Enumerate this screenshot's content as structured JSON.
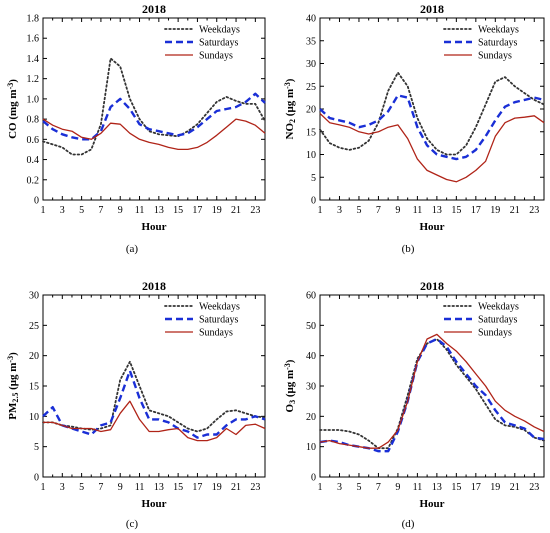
{
  "chart_data": [
    {
      "type": "line",
      "panel_label": "(a)",
      "title": "2018",
      "xlabel": "Hour",
      "ylabel_main": "CO (mg m",
      "ylabel_sup": "-3",
      "ylabel_close": ")",
      "xlim": [
        1,
        24
      ],
      "ylim": [
        0,
        1.8
      ],
      "xticks": [
        "1",
        "3",
        "5",
        "7",
        "9",
        "11",
        "13",
        "15",
        "17",
        "19",
        "21",
        "23"
      ],
      "yticks": [
        "0",
        "0.2",
        "0.4",
        "0.6",
        "0.8",
        "1.0",
        "1.2",
        "1.4",
        "1.6",
        "1.8"
      ],
      "ytick_values": [
        0,
        0.2,
        0.4,
        0.6,
        0.8,
        1.0,
        1.2,
        1.4,
        1.6,
        1.8
      ],
      "legend_position": "top-right",
      "series": [
        {
          "name": "Weekdays",
          "color": "#333333",
          "style": "dotted",
          "values": [
            0.58,
            0.55,
            0.52,
            0.45,
            0.45,
            0.5,
            0.75,
            1.4,
            1.32,
            1.0,
            0.8,
            0.68,
            0.65,
            0.64,
            0.63,
            0.68,
            0.75,
            0.86,
            0.97,
            1.02,
            0.98,
            0.95,
            0.95,
            0.78
          ]
        },
        {
          "name": "Saturdays",
          "color": "#1a2fd6",
          "style": "dashed",
          "values": [
            0.78,
            0.7,
            0.65,
            0.62,
            0.6,
            0.6,
            0.68,
            0.92,
            1.0,
            0.9,
            0.75,
            0.7,
            0.68,
            0.66,
            0.64,
            0.66,
            0.72,
            0.8,
            0.88,
            0.9,
            0.92,
            0.97,
            1.05,
            0.96
          ]
        },
        {
          "name": "Sundays",
          "color": "#b02418",
          "style": "solid",
          "values": [
            0.8,
            0.74,
            0.7,
            0.68,
            0.62,
            0.6,
            0.66,
            0.76,
            0.75,
            0.66,
            0.6,
            0.57,
            0.55,
            0.52,
            0.5,
            0.5,
            0.52,
            0.57,
            0.64,
            0.72,
            0.8,
            0.78,
            0.74,
            0.66
          ]
        }
      ]
    },
    {
      "type": "line",
      "panel_label": "(b)",
      "title": "2018",
      "xlabel": "Hour",
      "ylabel_main": "NO",
      "ylabel_sub": "2",
      "ylabel_rest": " (μg m",
      "ylabel_sup": "-3",
      "ylabel_close": ")",
      "xlim": [
        1,
        24
      ],
      "ylim": [
        0,
        40
      ],
      "xticks": [
        "1",
        "3",
        "5",
        "7",
        "9",
        "11",
        "13",
        "15",
        "17",
        "19",
        "21",
        "23"
      ],
      "yticks": [
        "0",
        "5",
        "10",
        "15",
        "20",
        "25",
        "30",
        "35",
        "40"
      ],
      "ytick_values": [
        0,
        5,
        10,
        15,
        20,
        25,
        30,
        35,
        40
      ],
      "legend_position": "top-right",
      "series": [
        {
          "name": "Weekdays",
          "color": "#333333",
          "style": "dotted",
          "values": [
            15.5,
            12.5,
            11.5,
            11,
            11.5,
            13,
            17,
            24,
            28,
            25,
            18,
            13.5,
            11,
            10,
            10,
            12,
            16,
            21,
            26,
            27,
            25,
            23.5,
            22,
            21
          ]
        },
        {
          "name": "Saturdays",
          "color": "#1a2fd6",
          "style": "dashed",
          "values": [
            20,
            18,
            17.5,
            17,
            16,
            16.5,
            17.5,
            19.5,
            23,
            22.5,
            16,
            12,
            10,
            9.5,
            9,
            9.5,
            11,
            14,
            17.5,
            20.5,
            21.5,
            22,
            22.5,
            22
          ]
        },
        {
          "name": "Sundays",
          "color": "#b02418",
          "style": "solid",
          "values": [
            19,
            17,
            16.5,
            16,
            15,
            14.5,
            15,
            16,
            16.5,
            13.5,
            9,
            6.5,
            5.5,
            4.5,
            4,
            5,
            6.5,
            8.5,
            14,
            17,
            18,
            18.2,
            18.5,
            17
          ]
        }
      ]
    },
    {
      "type": "line",
      "panel_label": "(c)",
      "title": "2018",
      "xlabel": "Hour",
      "ylabel_main": "PM",
      "ylabel_sub": "2.5",
      "ylabel_rest": " (μg m",
      "ylabel_sup": "-3",
      "ylabel_close": ")",
      "xlim": [
        1,
        24
      ],
      "ylim": [
        0,
        30
      ],
      "xticks": [
        "1",
        "3",
        "5",
        "7",
        "9",
        "11",
        "13",
        "15",
        "17",
        "19",
        "21",
        "23"
      ],
      "yticks": [
        "0",
        "5",
        "10",
        "15",
        "20",
        "25",
        "30"
      ],
      "ytick_values": [
        0,
        5,
        10,
        15,
        20,
        25,
        30
      ],
      "legend_position": "top-right",
      "series": [
        {
          "name": "Weekdays",
          "color": "#333333",
          "style": "dotted",
          "values": [
            9,
            9,
            8.5,
            8.3,
            8,
            7.8,
            8,
            8.5,
            16,
            19,
            15,
            11,
            10.5,
            10,
            9,
            8,
            7.5,
            8,
            9.5,
            10.8,
            11,
            10.5,
            10,
            9.8
          ]
        },
        {
          "name": "Saturdays",
          "color": "#1a2fd6",
          "style": "dashed",
          "values": [
            10,
            11.5,
            8.5,
            8,
            7.5,
            7,
            8.5,
            9,
            13,
            17.5,
            13,
            9.5,
            9.5,
            9,
            8,
            7.5,
            6.5,
            7,
            7,
            8.5,
            9.5,
            9.5,
            10,
            9.5
          ]
        },
        {
          "name": "Sundays",
          "color": "#b02418",
          "style": "solid",
          "values": [
            9,
            9,
            8.5,
            8,
            8,
            8,
            7.5,
            7.8,
            10.5,
            12.5,
            9.5,
            7.5,
            7.5,
            7.8,
            8,
            6.5,
            6,
            6,
            6.5,
            8,
            7,
            8.5,
            8.7,
            8
          ]
        }
      ]
    },
    {
      "type": "line",
      "panel_label": "(d)",
      "title": "2018",
      "xlabel": "Hour",
      "ylabel_main": "O",
      "ylabel_sub": "3",
      "ylabel_rest": " (μg m",
      "ylabel_sup": "-3",
      "ylabel_close": ")",
      "xlim": [
        1,
        24
      ],
      "ylim": [
        0,
        60
      ],
      "xticks": [
        "1",
        "3",
        "5",
        "7",
        "9",
        "11",
        "13",
        "15",
        "17",
        "19",
        "21",
        "23"
      ],
      "yticks": [
        "0",
        "10",
        "20",
        "30",
        "40",
        "50",
        "60"
      ],
      "ytick_values": [
        0,
        10,
        20,
        30,
        40,
        50,
        60
      ],
      "legend_position": "top-right",
      "series": [
        {
          "name": "Weekdays",
          "color": "#333333",
          "style": "dotted",
          "values": [
            15.5,
            15.5,
            15.5,
            15,
            14,
            12,
            9.5,
            9.5,
            16,
            27,
            39,
            44,
            45.5,
            42,
            37,
            33,
            29,
            24,
            19,
            17,
            16.5,
            15.5,
            13,
            12
          ]
        },
        {
          "name": "Saturdays",
          "color": "#1a2fd6",
          "style": "dashed",
          "values": [
            11.5,
            12,
            11.5,
            10.5,
            10,
            9.5,
            8.5,
            8.5,
            15,
            25,
            38,
            44,
            45.5,
            43,
            38,
            34,
            30,
            27,
            22,
            18,
            17,
            16,
            13,
            12.5
          ]
        },
        {
          "name": "Sundays",
          "color": "#b02418",
          "style": "solid",
          "values": [
            11.5,
            12,
            11,
            10.5,
            10,
            9.5,
            9.5,
            11.5,
            15.5,
            25,
            38,
            45.5,
            47,
            44,
            41.5,
            38,
            34,
            30,
            25,
            22,
            20,
            18.5,
            16.5,
            15
          ]
        }
      ]
    }
  ]
}
